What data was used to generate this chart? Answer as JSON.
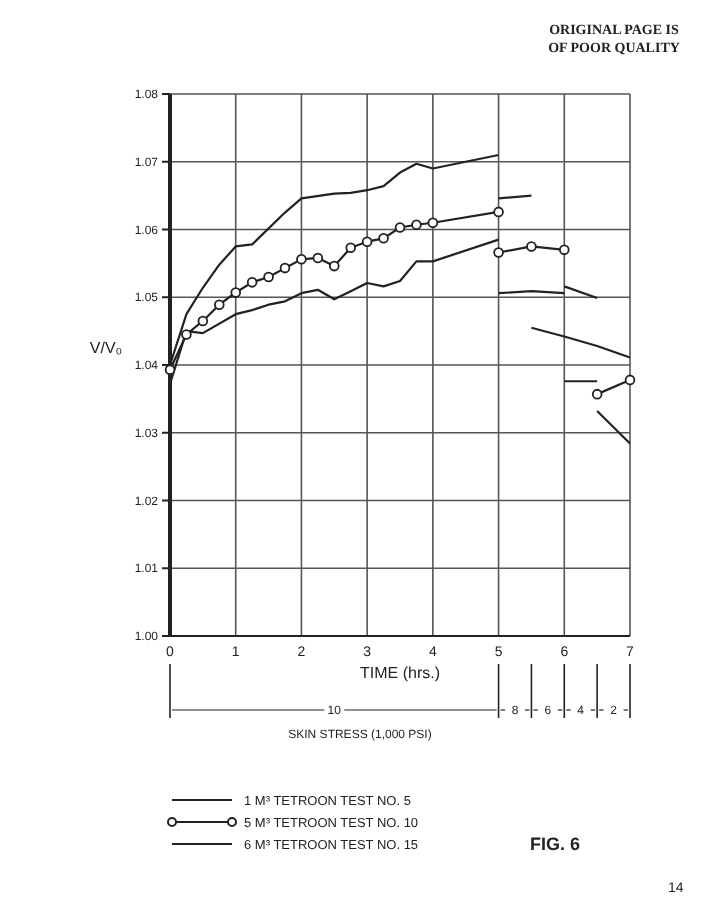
{
  "chart_data": {
    "type": "line",
    "xlabel": "TIME (hrs.)",
    "ylabel": "V/V₀",
    "xlim": [
      0,
      7
    ],
    "xticks": [
      0,
      1,
      2,
      3,
      4,
      5,
      6,
      7
    ],
    "ylim": [
      1.0,
      1.08
    ],
    "yticks": [
      {
        "value": 1.0,
        "label": "1.00"
      },
      {
        "value": 1.01,
        "label": "1.01"
      },
      {
        "value": 1.02,
        "label": "1.02"
      },
      {
        "value": 1.03,
        "label": "1.03"
      },
      {
        "value": 1.04,
        "label": "1.04"
      },
      {
        "value": 1.05,
        "label": "1.05"
      },
      {
        "value": 1.06,
        "label": "1.06"
      },
      {
        "value": 1.07,
        "label": "1.07"
      },
      {
        "value": 1.08,
        "label": "1.08"
      }
    ],
    "grid": true,
    "legend": "bottom",
    "series": [
      {
        "name": "1 M³ TETROON TEST NO. 5",
        "color": "#222222",
        "marker": "none",
        "x": [
          0,
          0.25,
          0.5,
          1,
          1.25,
          1.5,
          1.75,
          2,
          2.25,
          2.5,
          2.75,
          3,
          3.25,
          3.5,
          3.75,
          4,
          5,
          null,
          5,
          5.5,
          6,
          null,
          5.5,
          6,
          6.5,
          7,
          null,
          6,
          6.5
        ],
        "values": [
          1.0372,
          1.045,
          1.0447,
          1.0475,
          1.0481,
          1.0489,
          1.0494,
          1.0506,
          1.0511,
          1.0497,
          1.0509,
          1.0521,
          1.0516,
          1.0524,
          1.0553,
          1.0553,
          1.0585,
          null,
          1.0506,
          1.0509,
          1.0506,
          null,
          1.0455,
          1.0442,
          1.0428,
          1.0411,
          null,
          1.0376,
          1.0376
        ]
      },
      {
        "name": "5 M³ TETROON TEST NO. 10",
        "color": "#222222",
        "marker": "circle",
        "x": [
          0,
          0.25,
          0.5,
          0.75,
          1,
          1.25,
          1.5,
          1.75,
          2,
          2.25,
          2.5,
          2.75,
          3,
          3.25,
          3.5,
          3.75,
          4,
          5,
          null,
          5,
          5.5,
          6,
          null,
          6.5,
          7
        ],
        "values": [
          1.0393,
          1.0445,
          1.0465,
          1.0489,
          1.0507,
          1.0522,
          1.053,
          1.0543,
          1.0556,
          1.0558,
          1.0546,
          1.0573,
          1.0582,
          1.0587,
          1.0603,
          1.0607,
          1.061,
          1.0626,
          null,
          1.0566,
          1.0575,
          1.057,
          null,
          1.0357,
          1.0378
        ]
      },
      {
        "name": "6 M³ TETROON TEST NO. 15",
        "color": "#222222",
        "marker": "none",
        "x": [
          0,
          0.25,
          0.5,
          0.75,
          1,
          1.25,
          1.75,
          2,
          2.5,
          2.75,
          3,
          3.25,
          3.5,
          3.75,
          4,
          5,
          null,
          5,
          5.5,
          null,
          6,
          6.5,
          null,
          6.5,
          7
        ],
        "values": [
          1.04,
          1.0475,
          1.0514,
          1.0548,
          1.0575,
          1.0578,
          1.0625,
          1.0646,
          1.0653,
          1.0654,
          1.0658,
          1.0664,
          1.0684,
          1.0697,
          1.069,
          1.071,
          null,
          1.0646,
          1.065,
          null,
          1.0516,
          1.0499,
          null,
          1.0332,
          1.0284
        ]
      }
    ],
    "annotations": [
      "ORIGINAL PAGE IS",
      "OF POOR QUALITY",
      "FIG. 6",
      "14",
      "SKIN STRESS (1,000 PSI)",
      "10",
      "8",
      "6",
      "4",
      "2"
    ]
  }
}
